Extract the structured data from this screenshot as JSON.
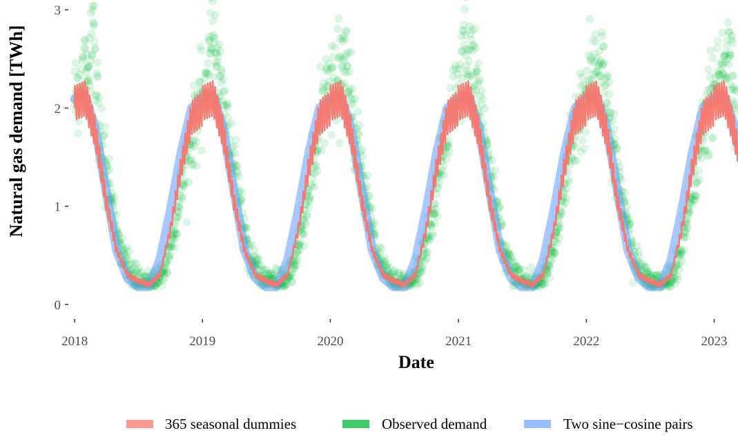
{
  "chart_data": {
    "type": "line",
    "title": "",
    "xlabel": "Date",
    "ylabel": "Natural gas demand [TWh]",
    "x_range": [
      "2017-12-20",
      "2023-03-10"
    ],
    "ylim": [
      -0.05,
      3.1
    ],
    "x_ticks": [
      "2018",
      "2019",
      "2020",
      "2021",
      "2022",
      "2023"
    ],
    "y_ticks": [
      "0",
      "1",
      "2",
      "3"
    ],
    "grid": false,
    "legend_position": "bottom",
    "series": [
      {
        "name": "365 seasonal dummies",
        "color": "#F8766D",
        "style": "thin line, 365-day repeating profile with weekly oscillation",
        "x": [
          "2018-01-01",
          "2018-02-01",
          "2018-03-01",
          "2018-04-01",
          "2018-05-01",
          "2018-06-01",
          "2018-07-01",
          "2018-08-01",
          "2018-09-01",
          "2018-10-01",
          "2018-11-01",
          "2018-12-01",
          "2019-01-01"
        ],
        "values": [
          2.0,
          2.1,
          1.75,
          1.05,
          0.55,
          0.3,
          0.24,
          0.2,
          0.3,
          0.75,
          1.4,
          1.9,
          2.05
        ],
        "weekly_amplitude": 0.15
      },
      {
        "name": "Observed demand",
        "color": "#00BA38",
        "style": "semi-transparent points",
        "x": [
          "2018-01-15",
          "2018-02-15",
          "2018-03-15",
          "2018-04-15",
          "2018-05-15",
          "2018-06-15",
          "2018-07-15",
          "2018-08-15",
          "2018-09-15",
          "2018-10-15",
          "2018-11-15",
          "2018-12-15"
        ],
        "values": [
          2.2,
          2.5,
          1.75,
          1.1,
          0.5,
          0.28,
          0.22,
          0.2,
          0.35,
          0.8,
          1.45,
          1.95
        ],
        "annual_peaks": [
          {
            "x": "2018-02-25",
            "y": 3.1
          },
          {
            "x": "2019-01-25",
            "y": 2.85
          },
          {
            "x": "2019-12-20",
            "y": 2.3
          },
          {
            "x": "2021-01-15",
            "y": 3.1
          },
          {
            "x": "2022-01-10",
            "y": 2.6
          },
          {
            "x": "2023-01-10",
            "y": 2.65
          }
        ],
        "scatter_sd": 0.18
      },
      {
        "name": "Two sine−cosine pairs",
        "color": "#619CFF",
        "style": "thick semi-transparent line",
        "x": [
          "2018-01-01",
          "2018-02-01",
          "2018-03-01",
          "2018-04-01",
          "2018-05-01",
          "2018-06-01",
          "2018-07-01",
          "2018-08-01",
          "2018-09-01",
          "2018-10-01",
          "2018-11-01",
          "2018-12-01",
          "2019-01-01"
        ],
        "values": [
          2.09,
          2.12,
          1.8,
          1.15,
          0.55,
          0.27,
          0.18,
          0.18,
          0.45,
          0.95,
          1.55,
          2.0,
          2.1
        ]
      }
    ]
  }
}
